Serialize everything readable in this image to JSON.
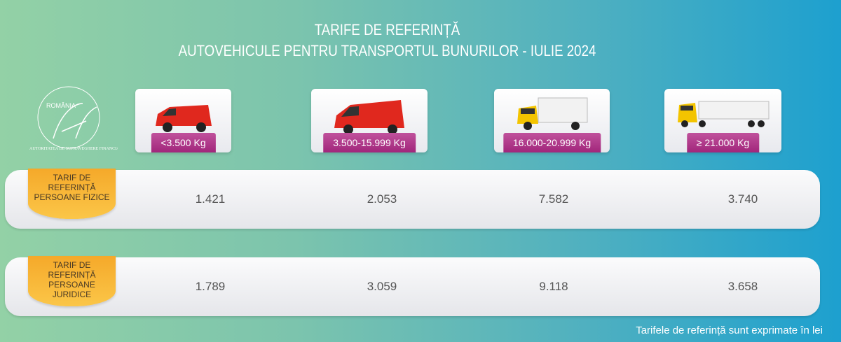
{
  "title": {
    "line1": "TARIFE DE REFERINȚĂ",
    "line2": "AUTOVEHICULE PENTRU TRANSPORTUL BUNURILOR - IULIE 2024"
  },
  "logo": {
    "top": "ROMÂNIA",
    "ring": "AUTORITATEA DE SUPRAVEGHERE FINANCIARĂ",
    "mark": "ASF"
  },
  "categories": [
    {
      "label": "<3.500 Kg",
      "icon": "small-van-icon"
    },
    {
      "label": "3.500-15.999 Kg",
      "icon": "van-icon"
    },
    {
      "label": "16.000-20.999 Kg",
      "icon": "truck-icon"
    },
    {
      "label": "≥ 21.000 Kg",
      "icon": "semi-truck-icon"
    }
  ],
  "rows": [
    {
      "label": "TARIF DE REFERINȚĂ PERSOANE FIZICE",
      "values": [
        "1.421",
        "2.053",
        "7.582",
        "3.740"
      ]
    },
    {
      "label": "TARIF DE REFERINȚĂ PERSOANE JURIDICE",
      "values": [
        "1.789",
        "3.059",
        "9.118",
        "3.658"
      ]
    }
  ],
  "note": "Tarifele de referință sunt exprimate în lei",
  "colors": {
    "label_bg": "#a1267b",
    "tab_bg": "#f5a92a",
    "van": "#e0281e",
    "truck": "#f3c400"
  }
}
